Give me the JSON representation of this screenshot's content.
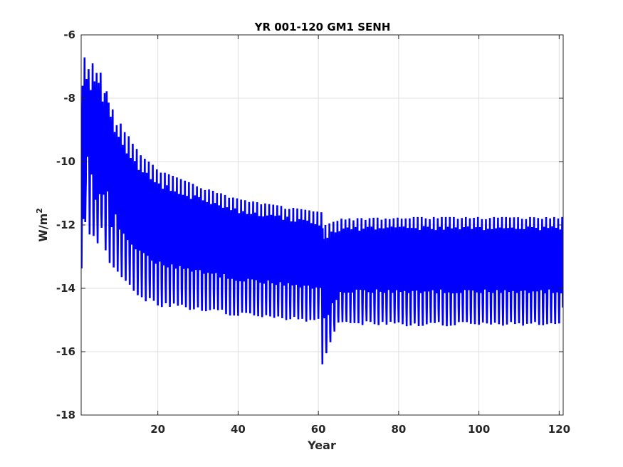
{
  "chart_data": {
    "type": "line",
    "title": "YR 001-120 GM1 SENH",
    "xlabel": "Year",
    "ylabel": "W/m",
    "ylabel_superscript": "2",
    "xlim": [
      0.9,
      121
    ],
    "ylim": [
      -18,
      -6
    ],
    "xticks": [
      20,
      40,
      60,
      80,
      100,
      120
    ],
    "yticks": [
      -18,
      -16,
      -14,
      -12,
      -10,
      -8,
      -6
    ],
    "grid": true,
    "line_color": "#0000ff",
    "series": [
      {
        "sampling": "monthly",
        "annual_cycle": [
          {
            "year": 1,
            "max": -6.6,
            "min": -13.5
          },
          {
            "year": 2,
            "max": -6.7,
            "min": -11.4
          },
          {
            "year": 3,
            "max": -6.9,
            "min": -12.3
          },
          {
            "year": 4,
            "max": -7.2,
            "min": -12.5
          },
          {
            "year": 5,
            "max": -7.1,
            "min": -12.8
          },
          {
            "year": 6,
            "max": -7.6,
            "min": -12.6
          },
          {
            "year": 7,
            "max": -7.7,
            "min": -12.8
          },
          {
            "year": 8,
            "max": -8.3,
            "min": -13.2
          },
          {
            "year": 10,
            "max": -8.8,
            "min": -13.6
          },
          {
            "year": 15,
            "max": -9.8,
            "min": -14.3
          },
          {
            "year": 20,
            "max": -10.3,
            "min": -14.6
          },
          {
            "year": 30,
            "max": -10.8,
            "min": -14.7
          },
          {
            "year": 40,
            "max": -11.2,
            "min": -14.9
          },
          {
            "year": 50,
            "max": -11.4,
            "min": -15.0
          },
          {
            "year": 60,
            "max": -11.6,
            "min": -15.1
          },
          {
            "year": 61,
            "max": -12.0,
            "min": -16.4
          },
          {
            "year": 65,
            "max": -11.8,
            "min": -15.15
          },
          {
            "year": 80,
            "max": -11.75,
            "min": -15.2
          },
          {
            "year": 100,
            "max": -11.75,
            "min": -15.2
          },
          {
            "year": 120,
            "max": -11.75,
            "min": -15.2
          }
        ]
      }
    ]
  }
}
